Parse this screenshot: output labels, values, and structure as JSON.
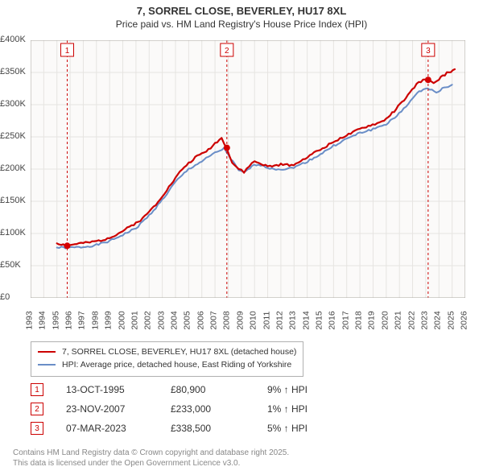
{
  "title": {
    "line1": "7, SORREL CLOSE, BEVERLEY, HU17 8XL",
    "line2": "Price paid vs. HM Land Registry's House Price Index (HPI)"
  },
  "chart": {
    "type": "line",
    "background_color": "#fbfaf9",
    "grid_color": "#e6e4e1",
    "axis_color": "#aaa6a0",
    "font_size_labels": 11,
    "x": {
      "min": 1993,
      "max": 2026,
      "tick_step": 1,
      "labels": [
        "1993",
        "1994",
        "1995",
        "1996",
        "1997",
        "1998",
        "1999",
        "2000",
        "2001",
        "2002",
        "2003",
        "2004",
        "2005",
        "2006",
        "2007",
        "2008",
        "2009",
        "2010",
        "2011",
        "2012",
        "2013",
        "2014",
        "2015",
        "2016",
        "2017",
        "2018",
        "2019",
        "2020",
        "2021",
        "2022",
        "2023",
        "2024",
        "2025",
        "2026"
      ]
    },
    "y": {
      "min": 0,
      "max": 400000,
      "tick_step": 50000,
      "labels": [
        "£0",
        "£50K",
        "£100K",
        "£150K",
        "£200K",
        "£250K",
        "£300K",
        "£350K",
        "£400K"
      ]
    },
    "series": [
      {
        "id": "property",
        "label": "7, SORREL CLOSE, BEVERLEY, HU17 8XL (detached house)",
        "color": "#cc0000",
        "line_width": 2.2,
        "points": [
          [
            1995.0,
            85000
          ],
          [
            1995.8,
            80900
          ],
          [
            1996.5,
            84000
          ],
          [
            1997.5,
            86000
          ],
          [
            1998.5,
            90000
          ],
          [
            1999.5,
            98000
          ],
          [
            2000.5,
            110000
          ],
          [
            2001.5,
            123000
          ],
          [
            2002.5,
            145000
          ],
          [
            2003.5,
            172000
          ],
          [
            2004.5,
            200000
          ],
          [
            2005.5,
            218000
          ],
          [
            2006.5,
            230000
          ],
          [
            2007.0,
            240000
          ],
          [
            2007.5,
            248000
          ],
          [
            2007.9,
            233000
          ],
          [
            2008.3,
            210000
          ],
          [
            2008.8,
            200000
          ],
          [
            2009.2,
            195000
          ],
          [
            2009.6,
            205000
          ],
          [
            2010.0,
            212000
          ],
          [
            2010.5,
            208000
          ],
          [
            2011.0,
            204000
          ],
          [
            2011.5,
            205000
          ],
          [
            2012.0,
            207000
          ],
          [
            2012.8,
            206000
          ],
          [
            2013.5,
            212000
          ],
          [
            2014.2,
            222000
          ],
          [
            2015.0,
            230000
          ],
          [
            2015.8,
            240000
          ],
          [
            2016.5,
            248000
          ],
          [
            2017.3,
            255000
          ],
          [
            2018.0,
            262000
          ],
          [
            2018.8,
            268000
          ],
          [
            2019.5,
            272000
          ],
          [
            2020.0,
            278000
          ],
          [
            2020.6,
            290000
          ],
          [
            2021.2,
            304000
          ],
          [
            2021.8,
            318000
          ],
          [
            2022.3,
            332000
          ],
          [
            2022.8,
            338000
          ],
          [
            2023.2,
            338500
          ],
          [
            2023.6,
            332000
          ],
          [
            2024.0,
            340000
          ],
          [
            2024.6,
            349000
          ],
          [
            2025.2,
            355000
          ]
        ]
      },
      {
        "id": "hpi",
        "label": "HPI: Average price, detached house, East Riding of Yorkshire",
        "color": "#6a8ec7",
        "line_width": 2,
        "points": [
          [
            1995.0,
            78000
          ],
          [
            1996.0,
            78000
          ],
          [
            1997.0,
            79000
          ],
          [
            1998.0,
            82000
          ],
          [
            1999.0,
            88000
          ],
          [
            2000.0,
            98000
          ],
          [
            2001.0,
            108000
          ],
          [
            2002.0,
            128000
          ],
          [
            2003.0,
            152000
          ],
          [
            2004.0,
            180000
          ],
          [
            2005.0,
            200000
          ],
          [
            2006.0,
            212000
          ],
          [
            2007.0,
            225000
          ],
          [
            2007.7,
            232000
          ],
          [
            2008.2,
            216000
          ],
          [
            2008.8,
            198000
          ],
          [
            2009.2,
            194000
          ],
          [
            2009.8,
            204000
          ],
          [
            2010.3,
            208000
          ],
          [
            2011.0,
            202000
          ],
          [
            2011.8,
            200000
          ],
          [
            2012.5,
            200000
          ],
          [
            2013.3,
            205000
          ],
          [
            2014.2,
            214000
          ],
          [
            2015.0,
            223000
          ],
          [
            2016.0,
            236000
          ],
          [
            2017.0,
            247000
          ],
          [
            2018.0,
            256000
          ],
          [
            2019.0,
            262000
          ],
          [
            2020.0,
            270000
          ],
          [
            2020.8,
            282000
          ],
          [
            2021.5,
            298000
          ],
          [
            2022.2,
            314000
          ],
          [
            2022.8,
            325000
          ],
          [
            2023.3,
            324000
          ],
          [
            2023.8,
            320000
          ],
          [
            2024.4,
            326000
          ],
          [
            2025.0,
            331000
          ]
        ]
      }
    ],
    "sale_markers": [
      {
        "index": "1",
        "x": 1995.78,
        "y": 80900
      },
      {
        "index": "2",
        "x": 2007.9,
        "y": 233000
      },
      {
        "index": "3",
        "x": 2023.18,
        "y": 338500
      }
    ],
    "marker_box_color": "#cc0000",
    "marker_line_color": "#cc0000",
    "marker_line_dash": "3,3",
    "marker_dot_color": "#d40000",
    "marker_dot_radius": 4
  },
  "legend": {
    "border_color": "#b0b0b0",
    "items": [
      {
        "color": "#cc0000",
        "text": "7, SORREL CLOSE, BEVERLEY, HU17 8XL (detached house)"
      },
      {
        "color": "#6a8ec7",
        "text": "HPI: Average price, detached house, East Riding of Yorkshire"
      }
    ]
  },
  "sales": [
    {
      "index": "1",
      "date": "13-OCT-1995",
      "price": "£80,900",
      "delta": "9% ↑ HPI"
    },
    {
      "index": "2",
      "date": "23-NOV-2007",
      "price": "£233,000",
      "delta": "1% ↑ HPI"
    },
    {
      "index": "3",
      "date": "07-MAR-2023",
      "price": "£338,500",
      "delta": "5% ↑ HPI"
    }
  ],
  "footer": {
    "line1": "Contains HM Land Registry data © Crown copyright and database right 2025.",
    "line2": "This data is licensed under the Open Government Licence v3.0."
  }
}
